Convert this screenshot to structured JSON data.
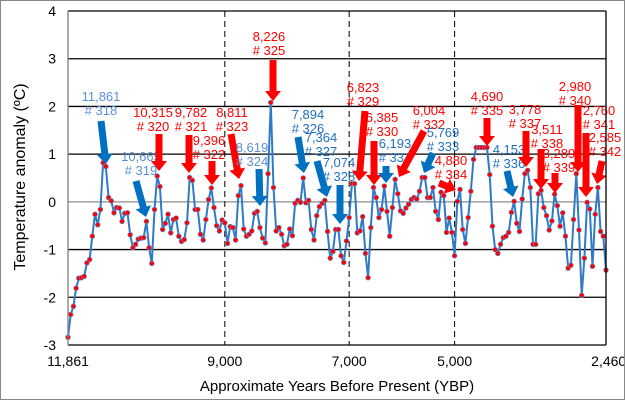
{
  "chart_data": {
    "type": "line",
    "title": "",
    "xlabel": "Approximate Years Before Present (YBP)",
    "ylabel": "Temperature  anomaly (ºC)",
    "ylim": [
      -3,
      4
    ],
    "yticks": [
      -3,
      -2,
      -1,
      0,
      1,
      2,
      3,
      4
    ],
    "xticks": [
      {
        "label": "11,861",
        "index": 0
      },
      {
        "label": "9,000",
        "index": 58,
        "dashed": true
      },
      {
        "label": "7,000",
        "index": 104,
        "dashed": true
      },
      {
        "label": "5,000",
        "index": 143,
        "dashed": true
      },
      {
        "label": "2,460",
        "index": 200
      }
    ],
    "grid": true,
    "colors": {
      "line": "#2f7ac6",
      "marker": "#ff0000",
      "blue_arrow": "#0070c0",
      "red_arrow": "#ff0000",
      "blue_text": "#1f70c0",
      "light_blue_text": "#5b8fd6",
      "red_text": "#ff0000"
    },
    "values": [
      -2.84,
      -2.36,
      -2.19,
      -1.81,
      -1.6,
      -1.59,
      -1.56,
      -1.28,
      -1.21,
      -0.72,
      -0.26,
      -0.48,
      -0.16,
      0.82,
      0.74,
      0.09,
      0.02,
      -0.23,
      -0.12,
      -0.13,
      -0.41,
      -0.24,
      -0.23,
      -0.69,
      -0.96,
      -0.89,
      -0.78,
      -0.76,
      -0.75,
      -0.41,
      -0.96,
      -1.29,
      -0.16,
      0.54,
      0.32,
      -0.58,
      -0.45,
      -0.26,
      -0.65,
      -0.37,
      -0.34,
      -0.72,
      -0.83,
      -0.79,
      -0.44,
      0.51,
      0.45,
      -0.16,
      -0.16,
      -0.68,
      -0.8,
      -0.37,
      0.05,
      0.29,
      -0.12,
      -0.5,
      -0.61,
      -0.38,
      -0.44,
      -0.87,
      -0.52,
      -0.54,
      -0.8,
      0.13,
      0.34,
      -0.57,
      -0.72,
      -0.68,
      -0.61,
      -0.24,
      -0.2,
      -0.54,
      -0.76,
      -0.86,
      0.59,
      2.08,
      0.3,
      -0.61,
      -0.54,
      -0.68,
      -0.92,
      -0.89,
      -0.57,
      -0.71,
      -0.03,
      0.03,
      -0.01,
      0.5,
      -0.02,
      0.03,
      -0.58,
      -0.8,
      -0.29,
      -0.1,
      -0.03,
      0.03,
      -0.62,
      -1.18,
      -1.04,
      -0.58,
      -0.58,
      -1.13,
      -1.27,
      -0.82,
      -0.33,
      0.38,
      0.38,
      -0.65,
      -0.61,
      -0.31,
      -1.08,
      -1.59,
      -0.54,
      0.3,
      0.09,
      -0.33,
      -0.16,
      0.33,
      -0.2,
      -0.72,
      -0.12,
      0.47,
      0.17,
      -0.19,
      -0.24,
      -0.13,
      -0.05,
      0.05,
      0.09,
      0.06,
      0.22,
      0.51,
      0.51,
      0.09,
      0.09,
      0.3,
      -0.2,
      -0.37,
      0.2,
      0.13,
      -0.64,
      -0.34,
      -0.64,
      -1.13,
      0.01,
      0.26,
      -0.58,
      -0.87,
      -0.33,
      0.22,
      0.89,
      1.14,
      1.14,
      1.14,
      1.14,
      1.14,
      0.57,
      -0.51,
      -1.0,
      -1.08,
      -0.89,
      -0.75,
      -0.72,
      -0.64,
      -0.22,
      0.01,
      -0.45,
      -0.62,
      0.06,
      0.59,
      0.66,
      0.3,
      -0.89,
      -0.89,
      0.17,
      0.24,
      -0.12,
      -0.29,
      -0.59,
      -0.4,
      0.16,
      -0.08,
      -0.51,
      -0.23,
      -0.72,
      -1.39,
      -1.33,
      -0.37,
      0.59,
      -0.59,
      -1.96,
      -1.18,
      -0.01,
      -0.15,
      -1.35,
      -0.26,
      0.3,
      -0.62,
      -0.72,
      -1.43
    ],
    "annotations": [
      {
        "year": "11,861",
        "id": "# 318",
        "color": "light_blue"
      },
      {
        "year": "10,665",
        "id": "# 319",
        "color": "light_blue"
      },
      {
        "year": "10,315",
        "id": "# 320",
        "color": "red"
      },
      {
        "year": "9,782",
        "id": "# 321",
        "color": "red"
      },
      {
        "year": "9,396",
        "id": "# 322",
        "color": "red"
      },
      {
        "year": "8,811",
        "id": "# 323",
        "color": "red"
      },
      {
        "year": "8,619",
        "id": "# 324",
        "color": "light_blue"
      },
      {
        "year": "8,226",
        "id": "# 325",
        "color": "red"
      },
      {
        "year": "7,894",
        "id": "# 326",
        "color": "blue"
      },
      {
        "year": "7,364",
        "id": "# 327",
        "color": "blue"
      },
      {
        "year": "7,074",
        "id": "# 328",
        "color": "blue"
      },
      {
        "year": "6,823",
        "id": "# 329",
        "color": "red"
      },
      {
        "year": "6,385",
        "id": "# 330",
        "color": "red"
      },
      {
        "year": "6,193",
        "id": "# 331",
        "color": "blue"
      },
      {
        "year": "6,004",
        "id": "# 332",
        "color": "red"
      },
      {
        "year": "5,769",
        "id": "# 333",
        "color": "blue"
      },
      {
        "year": "4,880",
        "id": "# 334",
        "color": "red"
      },
      {
        "year": "4,690",
        "id": "# 335",
        "color": "red"
      },
      {
        "year": "4,153",
        "id": "# 336",
        "color": "blue"
      },
      {
        "year": "3,778",
        "id": "# 337",
        "color": "red"
      },
      {
        "year": "3,511",
        "id": "# 338",
        "color": "red"
      },
      {
        "year": "3,289",
        "id": "# 339",
        "color": "red"
      },
      {
        "year": "2,980",
        "id": "# 340",
        "color": "red"
      },
      {
        "year": "2,760",
        "id": "# 341",
        "color": "red"
      },
      {
        "year": "2,585",
        "id": "# 342",
        "color": "red"
      }
    ]
  }
}
